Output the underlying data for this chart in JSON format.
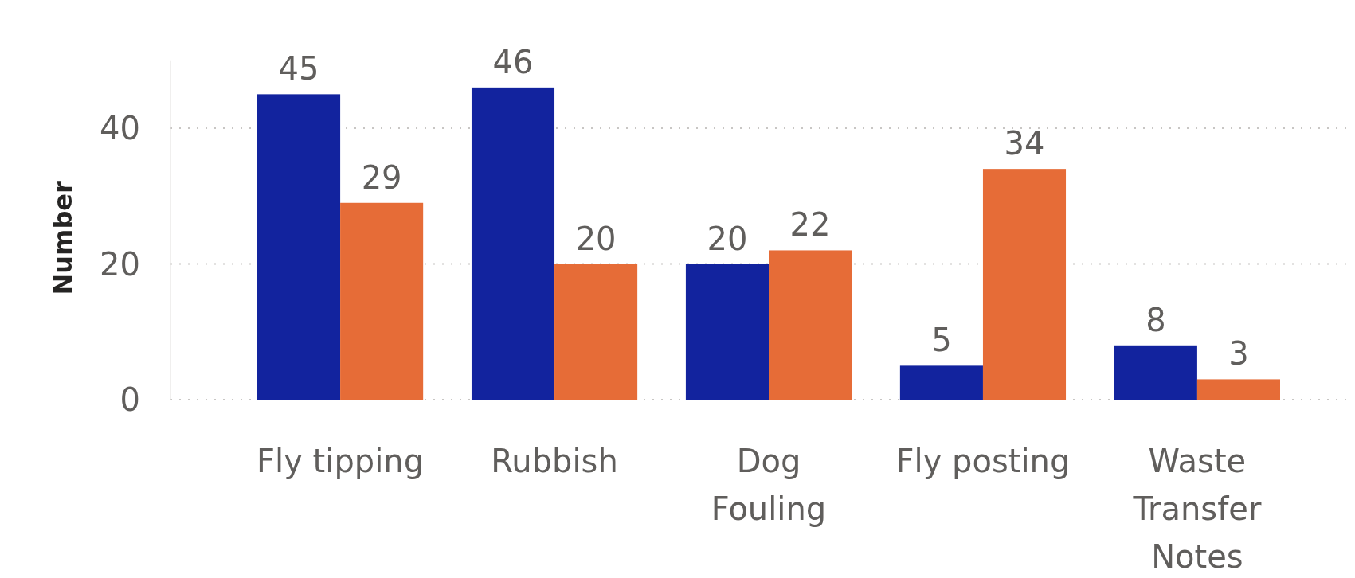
{
  "chart_data": {
    "type": "bar",
    "ylabel": "Number",
    "categories": [
      "Fly tipping",
      "Rubbish",
      "Dog Fouling",
      "Fly posting",
      "Waste Transfer Notes"
    ],
    "series": [
      {
        "color": "#12239e",
        "values": [
          45,
          46,
          20,
          5,
          8
        ]
      },
      {
        "color": "#e66c37",
        "values": [
          29,
          20,
          22,
          34,
          3
        ]
      }
    ],
    "ylim": [
      0,
      50
    ],
    "yticks": [
      0,
      20,
      40
    ],
    "grid": "y",
    "data_labels": true
  }
}
